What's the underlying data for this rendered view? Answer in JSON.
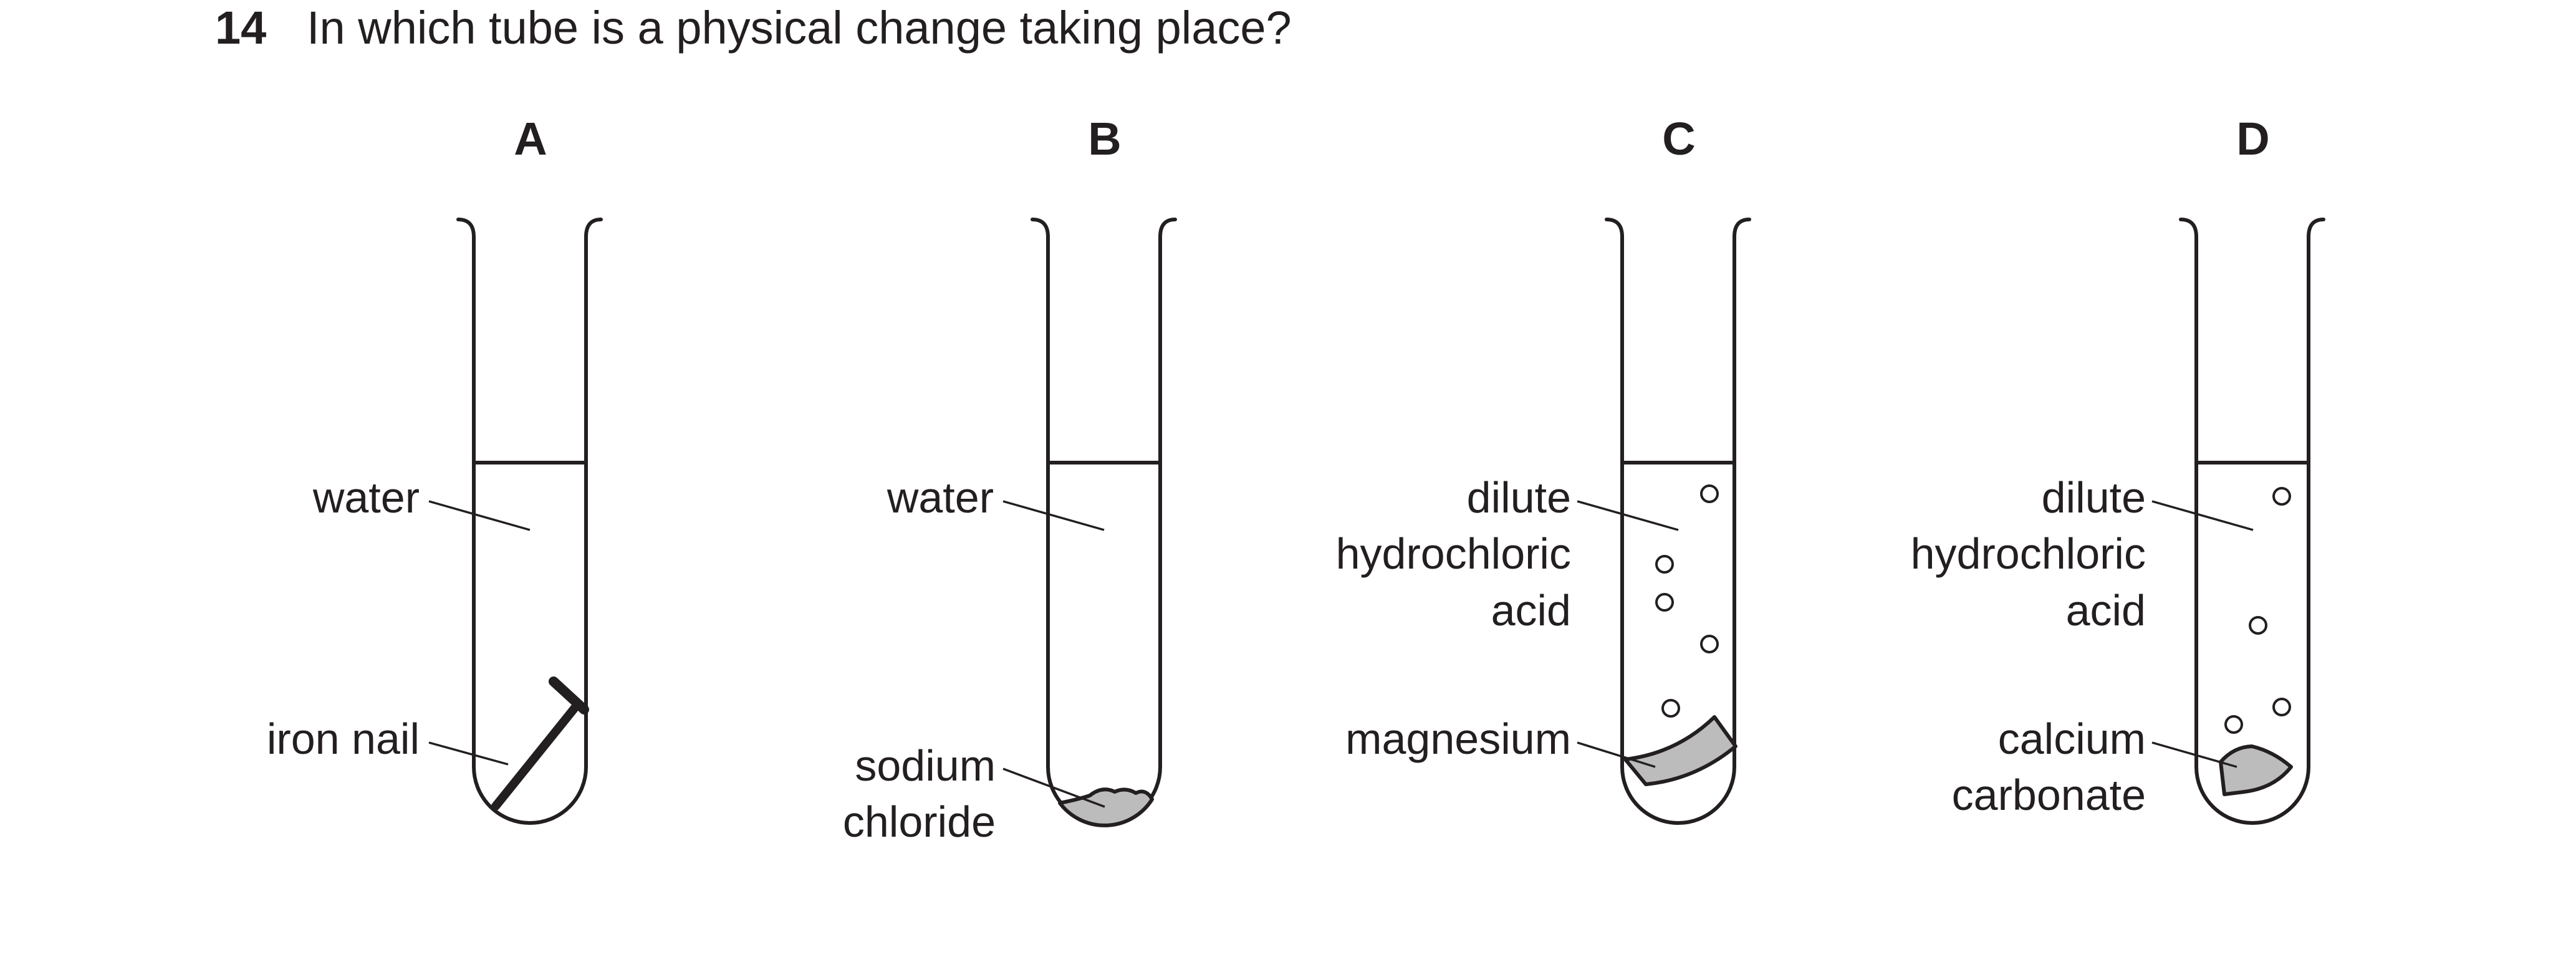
{
  "question": {
    "number": "14",
    "text": "In which tube is a physical change taking place?"
  },
  "tubes": [
    {
      "letter": "A",
      "liquid": "water",
      "solid": "iron nail"
    },
    {
      "letter": "B",
      "liquid": "water",
      "solid_lines": [
        "sodium",
        "chloride"
      ]
    },
    {
      "letter": "C",
      "liquid_lines": [
        "dilute",
        "hydrochloric",
        "acid"
      ],
      "solid": "magnesium"
    },
    {
      "letter": "D",
      "liquid_lines": [
        "dilute",
        "hydrochloric",
        "acid"
      ],
      "solid_lines": [
        "calcium",
        "carbonate"
      ]
    }
  ],
  "colors": {
    "ink": "#231f20",
    "solid_fill": "#bcbcbc"
  }
}
